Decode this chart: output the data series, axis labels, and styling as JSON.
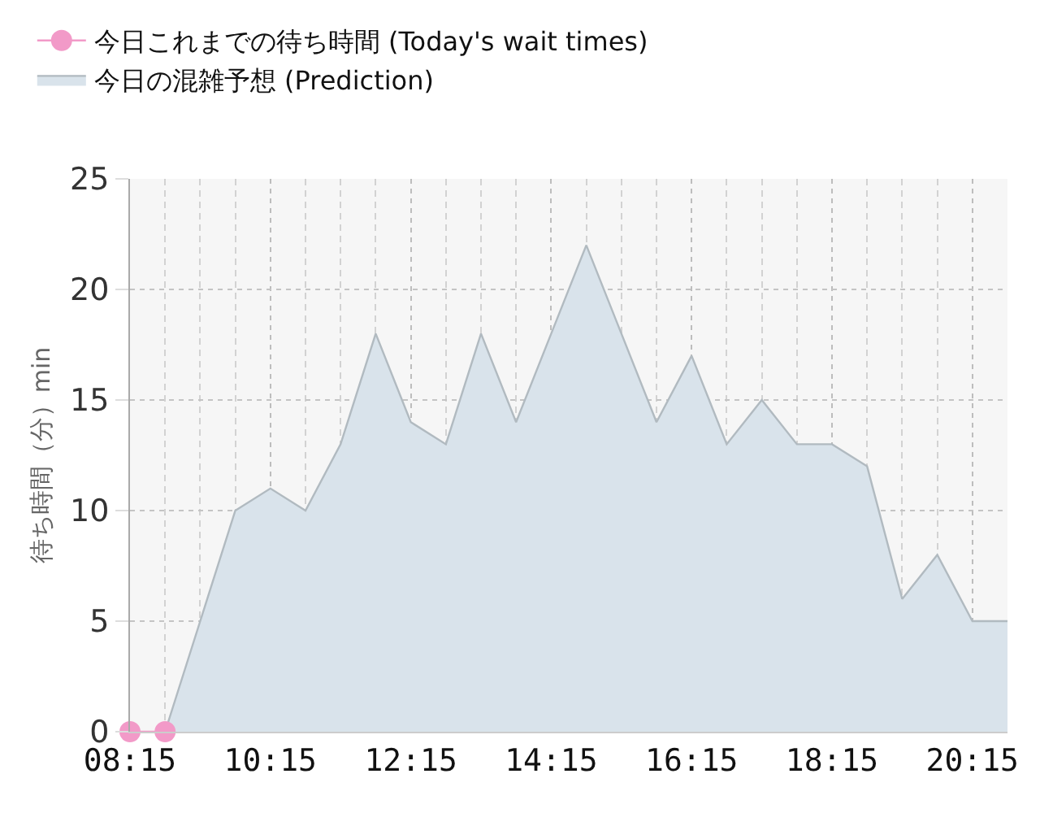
{
  "chart_data": {
    "type": "area",
    "ylabel": "待ち時間（分）min",
    "series": [
      {
        "name": "今日これまでの待ち時間 (Today's wait times)",
        "type": "line",
        "marker": "circle",
        "color": "#f29ac8",
        "x": [
          8.25,
          8.75
        ],
        "values": [
          0,
          0
        ]
      },
      {
        "name": "今日の混雑予想 (Prediction)",
        "color": "#d9e3eb",
        "x": [
          8.75,
          9.25,
          9.75,
          10.25,
          10.75,
          11.25,
          11.75,
          12.25,
          12.75,
          13.25,
          13.75,
          14.25,
          14.75,
          15.25,
          15.75,
          16.25,
          16.75,
          17.25,
          17.75,
          18.25,
          18.75,
          19.25,
          19.75,
          20.25,
          20.75
        ],
        "values": [
          0,
          5,
          10,
          11,
          10,
          13,
          18,
          14,
          13,
          18,
          14,
          18,
          22,
          18,
          14,
          17,
          13,
          15,
          13,
          13,
          12,
          6,
          8,
          5,
          5
        ]
      }
    ],
    "xlim": [
      8.25,
      20.75
    ],
    "xticks": [
      {
        "value": 8.25,
        "label": "08:15"
      },
      {
        "value": 8.75,
        "label": null
      },
      {
        "value": 9.25,
        "label": null
      },
      {
        "value": 9.75,
        "label": null
      },
      {
        "value": 10.25,
        "label": "10:15"
      },
      {
        "value": 10.75,
        "label": null
      },
      {
        "value": 11.25,
        "label": null
      },
      {
        "value": 11.75,
        "label": null
      },
      {
        "value": 12.25,
        "label": "12:15"
      },
      {
        "value": 12.75,
        "label": null
      },
      {
        "value": 13.25,
        "label": null
      },
      {
        "value": 13.75,
        "label": null
      },
      {
        "value": 14.25,
        "label": "14:15"
      },
      {
        "value": 14.75,
        "label": null
      },
      {
        "value": 15.25,
        "label": null
      },
      {
        "value": 15.75,
        "label": null
      },
      {
        "value": 16.25,
        "label": "16:15"
      },
      {
        "value": 16.75,
        "label": null
      },
      {
        "value": 17.25,
        "label": null
      },
      {
        "value": 17.75,
        "label": null
      },
      {
        "value": 18.25,
        "label": "18:15"
      },
      {
        "value": 18.75,
        "label": null
      },
      {
        "value": 19.25,
        "label": null
      },
      {
        "value": 19.75,
        "label": null
      },
      {
        "value": 20.25,
        "label": "20:15"
      },
      {
        "value": 20.75,
        "label": null
      }
    ],
    "ylim": [
      0,
      25
    ],
    "yticks": [
      0,
      5,
      10,
      15,
      20,
      25
    ],
    "grid": true,
    "legend": "top left"
  }
}
